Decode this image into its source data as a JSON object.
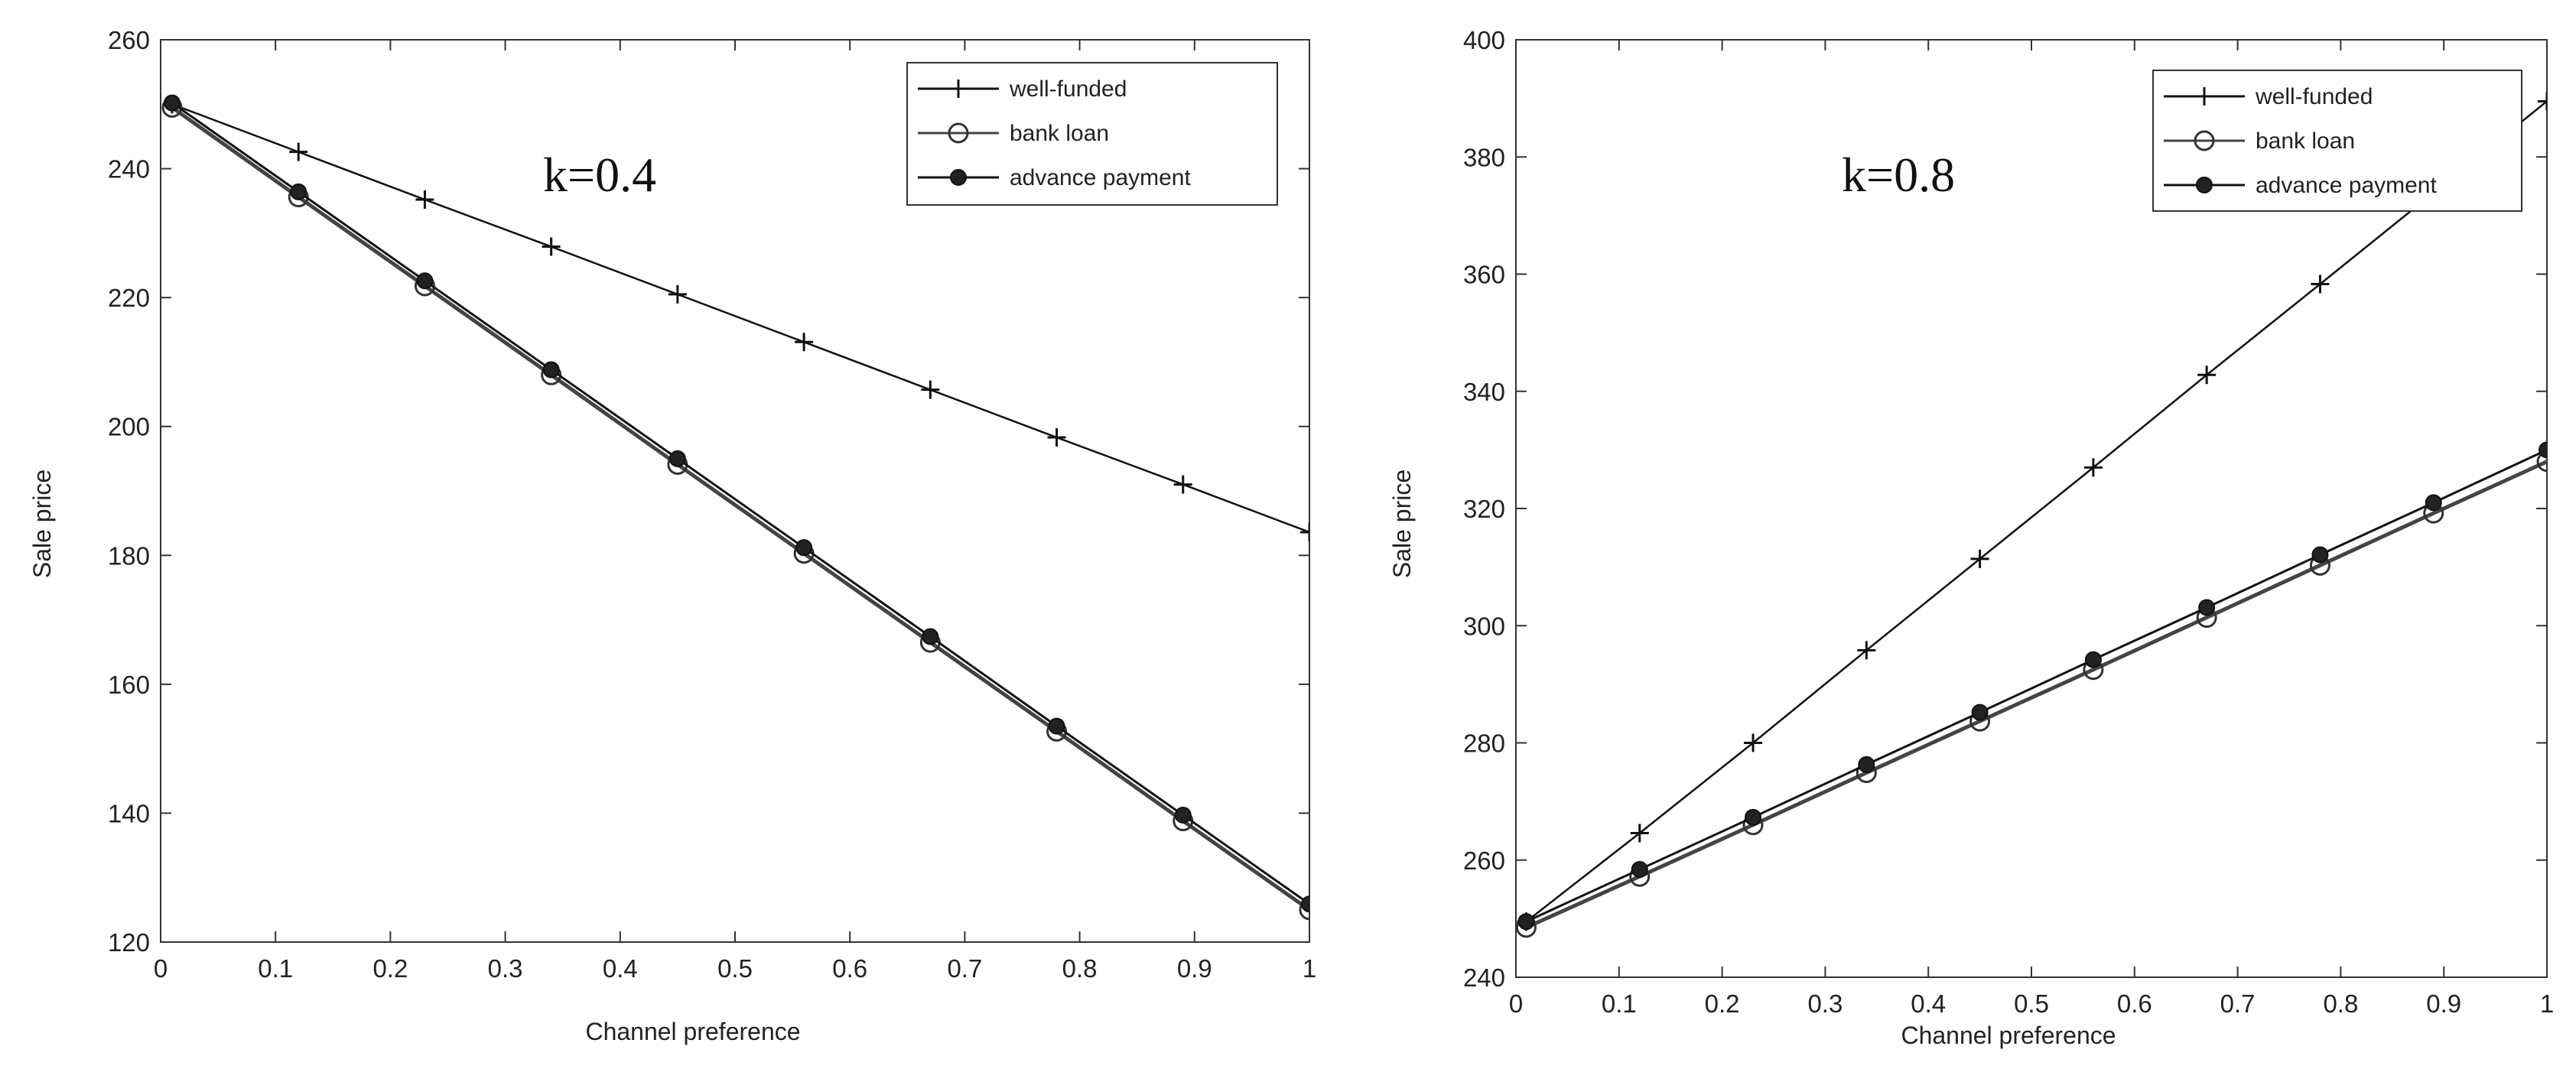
{
  "chart_data": [
    {
      "type": "line",
      "annotation": "k=0.4",
      "xlabel": "Channel preference",
      "ylabel": "Sale price",
      "xlim": [
        0,
        1
      ],
      "ylim": [
        120,
        260
      ],
      "xticks": [
        "0",
        "0.1",
        "0.2",
        "0.3",
        "0.4",
        "0.5",
        "0.6",
        "0.7",
        "0.8",
        "0.9",
        "1"
      ],
      "yticks": [
        "120",
        "140",
        "160",
        "180",
        "200",
        "220",
        "240",
        "260"
      ],
      "x": [
        0.01,
        0.12,
        0.23,
        0.34,
        0.45,
        0.56,
        0.67,
        0.78,
        0.89,
        1.0
      ],
      "legend_position": "top-right",
      "series": [
        {
          "name": "well-funded",
          "marker": "plus",
          "values": [
            250,
            242.6,
            235.2,
            227.9,
            220.5,
            213.1,
            205.7,
            198.3,
            191.0,
            183.6
          ]
        },
        {
          "name": "bank loan",
          "marker": "circle",
          "values": [
            249.5,
            235.6,
            221.8,
            208.0,
            194.1,
            180.3,
            166.5,
            152.7,
            138.8,
            125.0
          ]
        },
        {
          "name": "advance payment",
          "marker": "dot",
          "values": [
            250.2,
            236.4,
            222.6,
            208.8,
            195.0,
            181.2,
            167.4,
            153.5,
            139.7,
            125.9
          ]
        }
      ]
    },
    {
      "type": "line",
      "annotation": "k=0.8",
      "xlabel": "Channel preference",
      "ylabel": "Sale price",
      "xlim": [
        0,
        1
      ],
      "ylim": [
        240,
        400
      ],
      "xticks": [
        "0",
        "0.1",
        "0.2",
        "0.3",
        "0.4",
        "0.5",
        "0.6",
        "0.7",
        "0.8",
        "0.9",
        "1"
      ],
      "yticks": [
        "240",
        "260",
        "280",
        "300",
        "320",
        "340",
        "360",
        "380",
        "400"
      ],
      "x": [
        0.01,
        0.12,
        0.23,
        0.34,
        0.45,
        0.56,
        0.67,
        0.78,
        0.89,
        1.0
      ],
      "legend_position": "top-right",
      "series": [
        {
          "name": "well-funded",
          "marker": "plus",
          "values": [
            249.5,
            264.6,
            280.0,
            295.8,
            311.4,
            327.0,
            342.8,
            358.3,
            373.9,
            389.5
          ]
        },
        {
          "name": "bank loan",
          "marker": "circle",
          "values": [
            248.5,
            257.2,
            266.0,
            274.9,
            283.7,
            292.5,
            301.4,
            310.3,
            319.2,
            328.0
          ]
        },
        {
          "name": "advance payment",
          "marker": "dot",
          "values": [
            249.5,
            258.4,
            267.3,
            276.3,
            285.2,
            294.2,
            303.1,
            312.1,
            321.0,
            330.0
          ]
        }
      ]
    }
  ]
}
